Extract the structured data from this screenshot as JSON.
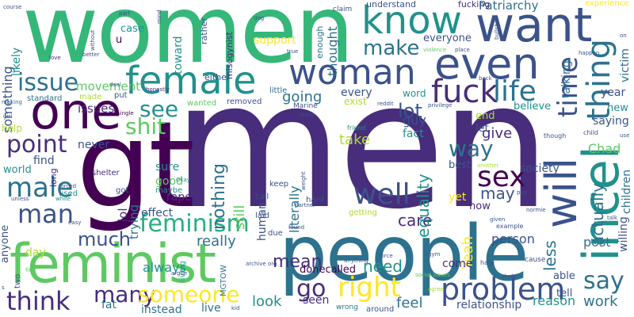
{
  "words": {
    "men": "men",
    "women": "women",
    "people": "people",
    "gt": "gt",
    "feminist": "feminist",
    "one": "one",
    "want": "want",
    "know": "know",
    "even": "even",
    "incel": "incel",
    "will": "will",
    "female": "female",
    "woman": "woman",
    "thing": "thing",
    "time": "time",
    "fuck": "fuck",
    "life": "life",
    "issue": "issue",
    "make": "make",
    "see": "see",
    "shit": "shit",
    "problem": "problem",
    "point": "point",
    "male": "male",
    "man": "man",
    "feminism": "feminism",
    "sex": "sex",
    "well": "well",
    "way": "way",
    "right": "right",
    "think": "think",
    "many": "many",
    "someone": "someone",
    "say": "say",
    "go": "go",
    "much": "much",
    "mean": "mean",
    "need": "need",
    "care": "care",
    "really": "really",
    "nothing": "nothing",
    "equality": "equality",
    "actually": "actually",
    "literally": "literally",
    "Patriarchy": "Patriarchy",
    "movement": "movement",
    "something": "something",
    "issues": "issues",
    "going": "going",
    "lot": "lot",
    "every": "every",
    "guy": "guy",
    "take": "take",
    "never": "never",
    "find": "find",
    "sure": "sure",
    "good": "good",
    "rape": "rape",
    "look": "look",
    "seen": "seen",
    "feel": "feel",
    "work": "work",
    "reason": "reason",
    "relationship": "relationship",
    "post": "post",
    "less": "less",
    "person": "person",
    "may": "may",
    "give": "give",
    "society": "society",
    "saying": "saying",
    "Chad": "Chad",
    "children": "children",
    "willing": "willing",
    "victim": "victim",
    "year": "year",
    "new": "new",
    "believe": "believe",
    "fact": "fact",
    "end": "end",
    "let": "let",
    "best": "best",
    "come": "come",
    "donecalled": "donecalled",
    "always": "always",
    "effect": "effect",
    "day": "day",
    "fat": "fat",
    "instead": "instead",
    "live": "live",
    "human": "human",
    "still": "still",
    "yet": "yet",
    "Yeah": "Yeah",
    "now": "now",
    "able": "able",
    "tell": "tell",
    "support": "support",
    "toward": "toward",
    "case": "case",
    "u": "u",
    "everyone": "everyone",
    "thought": "thought",
    "word": "word",
    "exist": "exist",
    "understand": "understand",
    "fucking": "fucking",
    "experience": "experience",
    "claim": "claim",
    "talking": "talking",
    "world": "world",
    "anyone": "anyone",
    "two": "two",
    "help": "help",
    "trying": "trying",
    "lol": "lol",
    "long": "long",
    "used": "used",
    "got": "got",
    "maybe": "maybe",
    "either": "either",
    "rather": "rather",
    "misogynist": "misogynist",
    "little": "little",
    "enough": "enough",
    "removed": "removed",
    "wanted": "wanted",
    "standard": "standard",
    "made": "made",
    "put": "put",
    "likely": "likely",
    "hard": "hard",
    "call": "call",
    "laid": "laid",
    "due": "due",
    "keep": "keep",
    "getting": "getting",
    "around": "around",
    "wrong": "wrong",
    "MGTOW": "MGTOW",
    "Marine": "Marine",
    "friend": "friend",
    "shelter": "shelter",
    "single": "single",
    "deal": "deal",
    "honestly": "honestly",
    "better": "better",
    "love": "love",
    "without": "without",
    "part": "part",
    "mind": "mind",
    "dog": "dog",
    "bullshit": "bullshit",
    "true": "true",
    "violence": "violence",
    "place": "place",
    "privilege": "privilege",
    "reddit": "reddit",
    "show": "show",
    "happen": "happen",
    "back": "back",
    "though": "though",
    "another": "another",
    "Okay": "Okay",
    "unless": "unless",
    "white": "white",
    "forced": "forced",
    "easy": "easy",
    "partner": "partner",
    "archive_org": "archive org",
    "social_issues": "social issues",
    "force": "force",
    "anything": "anything",
    "argue": "argue",
    "first": "first",
    "living": "living",
    "kid": "kid",
    "gym": "gym",
    "agree": "agree",
    "dude": "dude",
    "hate": "hate",
    "stop": "stop",
    "cause": "cause",
    "normie": "normie",
    "pay": "pay",
    "given": "given",
    "example": "example",
    "child": "child",
    "talk": "talk",
    "use": "use",
    "course": "course",
    "girl": "girl",
    "making": "making",
    "weight": "weight",
    "found": "found",
    "on": "on",
    "s": "s"
  }
}
